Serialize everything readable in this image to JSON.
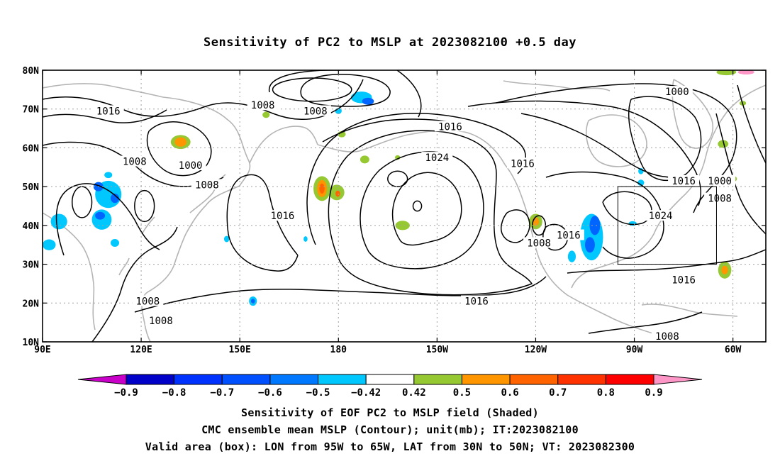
{
  "title": "Sensitivity of PC2 to MSLP at 2023082100 +0.5 day",
  "map": {
    "lon_range": [
      90,
      310
    ],
    "lat_range": [
      10,
      80
    ],
    "x_ticks": [
      {
        "lon": 90,
        "label": "90E"
      },
      {
        "lon": 120,
        "label": "120E"
      },
      {
        "lon": 150,
        "label": "150E"
      },
      {
        "lon": 180,
        "label": "180"
      },
      {
        "lon": 210,
        "label": "150W"
      },
      {
        "lon": 240,
        "label": "120W"
      },
      {
        "lon": 270,
        "label": "90W"
      },
      {
        "lon": 300,
        "label": "60W"
      }
    ],
    "y_ticks": [
      {
        "lat": 10,
        "label": "10N"
      },
      {
        "lat": 20,
        "label": "20N"
      },
      {
        "lat": 30,
        "label": "30N"
      },
      {
        "lat": 40,
        "label": "40N"
      },
      {
        "lat": 50,
        "label": "50N"
      },
      {
        "lat": 60,
        "label": "60N"
      },
      {
        "lat": 70,
        "label": "70N"
      },
      {
        "lat": 80,
        "label": "80N"
      }
    ],
    "valid_box": {
      "lon_min": 265,
      "lon_max": 295,
      "lat_min": 30,
      "lat_max": 50
    },
    "contour_labels": [
      {
        "text": "1016",
        "lon": 110,
        "lat": 69.5
      },
      {
        "text": "1008",
        "lon": 157,
        "lat": 71
      },
      {
        "text": "1008",
        "lon": 173,
        "lat": 69.5
      },
      {
        "text": "1016",
        "lon": 214,
        "lat": 65.5
      },
      {
        "text": "1000",
        "lon": 283,
        "lat": 74.5
      },
      {
        "text": "1008",
        "lon": 118,
        "lat": 56.5
      },
      {
        "text": "1000",
        "lon": 135,
        "lat": 55.5
      },
      {
        "text": "1008",
        "lon": 140,
        "lat": 50.5
      },
      {
        "text": "1024",
        "lon": 210,
        "lat": 57.5
      },
      {
        "text": "1016",
        "lon": 236,
        "lat": 56
      },
      {
        "text": "1016",
        "lon": 163,
        "lat": 42.5
      },
      {
        "text": "1016",
        "lon": 285,
        "lat": 51.5
      },
      {
        "text": "1000",
        "lon": 296,
        "lat": 51.5
      },
      {
        "text": "1008",
        "lon": 296,
        "lat": 47
      },
      {
        "text": "1024",
        "lon": 278,
        "lat": 42.5
      },
      {
        "text": "1016",
        "lon": 250,
        "lat": 37.5
      },
      {
        "text": "1008",
        "lon": 241,
        "lat": 35.5
      },
      {
        "text": "1016",
        "lon": 285,
        "lat": 26
      },
      {
        "text": "1016",
        "lon": 222,
        "lat": 20.5
      },
      {
        "text": "1008",
        "lon": 122,
        "lat": 20.5
      },
      {
        "text": "1008",
        "lon": 126,
        "lat": 15.5
      },
      {
        "text": "1008",
        "lon": 280,
        "lat": 11.5
      }
    ],
    "highs_lows": [
      {
        "lon": 172,
        "lat": 75,
        "rx": 12,
        "ry": 3
      },
      {
        "lon": 198,
        "lat": 52,
        "rx": 3,
        "ry": 2
      },
      {
        "lon": 204,
        "lat": 45,
        "rx": 1.3,
        "ry": 1.3
      },
      {
        "lon": 121,
        "lat": 45,
        "rx": 3,
        "ry": 4
      },
      {
        "lon": 102,
        "lat": 46,
        "rx": 3,
        "ry": 4
      },
      {
        "lon": 241,
        "lat": 40,
        "rx": 2,
        "ry": 2.5
      }
    ],
    "sensitivity_patches": [
      {
        "lon": 132,
        "lat": 61.5,
        "rx": 3,
        "ry": 1.8,
        "color": "#96c832"
      },
      {
        "lon": 132,
        "lat": 61.5,
        "rx": 1.8,
        "ry": 1.2,
        "color": "#ff9600"
      },
      {
        "lon": 175,
        "lat": 49.5,
        "rx": 2.6,
        "ry": 3.2,
        "color": "#96c832"
      },
      {
        "lon": 175,
        "lat": 49.5,
        "rx": 1.5,
        "ry": 2.2,
        "color": "#ff9600"
      },
      {
        "lon": 175,
        "lat": 49.5,
        "rx": 0.8,
        "ry": 1.3,
        "color": "#ff6400"
      },
      {
        "lon": 179.5,
        "lat": 48.5,
        "rx": 2.3,
        "ry": 2,
        "color": "#96c832"
      },
      {
        "lon": 179.8,
        "lat": 48.2,
        "rx": 0.7,
        "ry": 0.8,
        "color": "#ff6400"
      },
      {
        "lon": 240,
        "lat": 41,
        "rx": 2,
        "ry": 2,
        "color": "#96c832"
      },
      {
        "lon": 240,
        "lat": 41,
        "rx": 1,
        "ry": 1.1,
        "color": "#ff9600"
      },
      {
        "lon": 297.5,
        "lat": 28.5,
        "rx": 2,
        "ry": 2.2,
        "color": "#96c832"
      },
      {
        "lon": 297.5,
        "lat": 28.5,
        "rx": 1,
        "ry": 1.1,
        "color": "#ff9600"
      },
      {
        "lon": 199.5,
        "lat": 40,
        "rx": 2.2,
        "ry": 1.2,
        "color": "#96c832"
      },
      {
        "lon": 181,
        "lat": 63.5,
        "rx": 1.2,
        "ry": 0.8,
        "color": "#96c832"
      },
      {
        "lon": 198,
        "lat": 57.5,
        "rx": 0.8,
        "ry": 0.6,
        "color": "#96c832"
      },
      {
        "lon": 188,
        "lat": 57,
        "rx": 1.4,
        "ry": 1,
        "color": "#96c832"
      },
      {
        "lon": 158,
        "lat": 68.5,
        "rx": 1.1,
        "ry": 0.8,
        "color": "#96c832"
      },
      {
        "lon": 297,
        "lat": 61,
        "rx": 1.6,
        "ry": 1,
        "color": "#96c832"
      },
      {
        "lon": 300,
        "lat": 52,
        "rx": 1.2,
        "ry": 0.8,
        "color": "#96c832"
      },
      {
        "lon": 303,
        "lat": 71.5,
        "rx": 1,
        "ry": 0.6,
        "color": "#96c832"
      },
      {
        "lon": 187,
        "lat": 73,
        "rx": 3.2,
        "ry": 1.5,
        "color": "#00c8ff"
      },
      {
        "lon": 189,
        "lat": 72,
        "rx": 1.8,
        "ry": 0.9,
        "color": "#0064ff"
      },
      {
        "lon": 180,
        "lat": 69.5,
        "rx": 1,
        "ry": 0.8,
        "color": "#00c8ff"
      },
      {
        "lon": 110,
        "lat": 48,
        "rx": 4,
        "ry": 3.5,
        "color": "#00c8ff"
      },
      {
        "lon": 107,
        "lat": 50,
        "rx": 1.5,
        "ry": 1.2,
        "color": "#0064ff"
      },
      {
        "lon": 112,
        "lat": 47,
        "rx": 1.3,
        "ry": 1.2,
        "color": "#0064ff"
      },
      {
        "lon": 108,
        "lat": 41.5,
        "rx": 3,
        "ry": 2.6,
        "color": "#00c8ff"
      },
      {
        "lon": 107.5,
        "lat": 42.5,
        "rx": 1.5,
        "ry": 1,
        "color": "#0064ff"
      },
      {
        "lon": 95,
        "lat": 41,
        "rx": 2.5,
        "ry": 2,
        "color": "#00c8ff"
      },
      {
        "lon": 92,
        "lat": 35,
        "rx": 2,
        "ry": 1.4,
        "color": "#00c8ff"
      },
      {
        "lon": 112,
        "lat": 35.5,
        "rx": 1.3,
        "ry": 1,
        "color": "#00c8ff"
      },
      {
        "lon": 110,
        "lat": 53,
        "rx": 1.2,
        "ry": 0.8,
        "color": "#00c8ff"
      },
      {
        "lon": 257,
        "lat": 37,
        "rx": 3.5,
        "ry": 6,
        "color": "#00c8ff"
      },
      {
        "lon": 258,
        "lat": 40,
        "rx": 1.6,
        "ry": 2.5,
        "color": "#0064ff"
      },
      {
        "lon": 256.5,
        "lat": 35,
        "rx": 1.5,
        "ry": 2,
        "color": "#0064ff"
      },
      {
        "lon": 251,
        "lat": 32,
        "rx": 1.2,
        "ry": 1.5,
        "color": "#00c8ff"
      },
      {
        "lon": 269.5,
        "lat": 40.5,
        "rx": 1.2,
        "ry": 0.6,
        "color": "#00c8ff"
      },
      {
        "lon": 272,
        "lat": 51,
        "rx": 1,
        "ry": 0.8,
        "color": "#00c8ff"
      },
      {
        "lon": 272,
        "lat": 54,
        "rx": 0.8,
        "ry": 0.8,
        "color": "#00c8ff"
      },
      {
        "lon": 154,
        "lat": 20.5,
        "rx": 1.2,
        "ry": 1.2,
        "color": "#00c8ff"
      },
      {
        "lon": 154,
        "lat": 20.5,
        "rx": 0.6,
        "ry": 0.6,
        "color": "#0064ff"
      },
      {
        "lon": 146,
        "lat": 36.5,
        "rx": 0.8,
        "ry": 0.8,
        "color": "#00c8ff"
      },
      {
        "lon": 170,
        "lat": 36.5,
        "rx": 0.6,
        "ry": 0.7,
        "color": "#00c8ff"
      },
      {
        "lon": 298,
        "lat": 79.5,
        "rx": 3,
        "ry": 0.8,
        "color": "#96c832"
      },
      {
        "lon": 304,
        "lat": 79.5,
        "rx": 2.5,
        "ry": 0.6,
        "color": "#ff96c8"
      }
    ]
  },
  "colorbar": {
    "colors": [
      "#c800c8",
      "#0000c8",
      "#0032ff",
      "#0050ff",
      "#0078ff",
      "#00c8ff",
      "#ffffff",
      "#96c832",
      "#ff9600",
      "#ff6400",
      "#ff3200",
      "#ff0000",
      "#ff96c8"
    ],
    "labels": [
      "-0.9",
      "-0.8",
      "-0.7",
      "-0.6",
      "-0.5",
      "-0.42",
      "0.42",
      "0.5",
      "0.6",
      "0.7",
      "0.8",
      "0.9"
    ]
  },
  "captions": {
    "line1": "Sensitivity of EOF PC2 to MSLP field (Shaded)",
    "line2": "CMC ensemble mean MSLP (Contour); unit(mb); IT:2023082100",
    "line3": "Valid area (box): LON from 95W to 65W, LAT from 30N to 50N; VT: 2023082300"
  }
}
